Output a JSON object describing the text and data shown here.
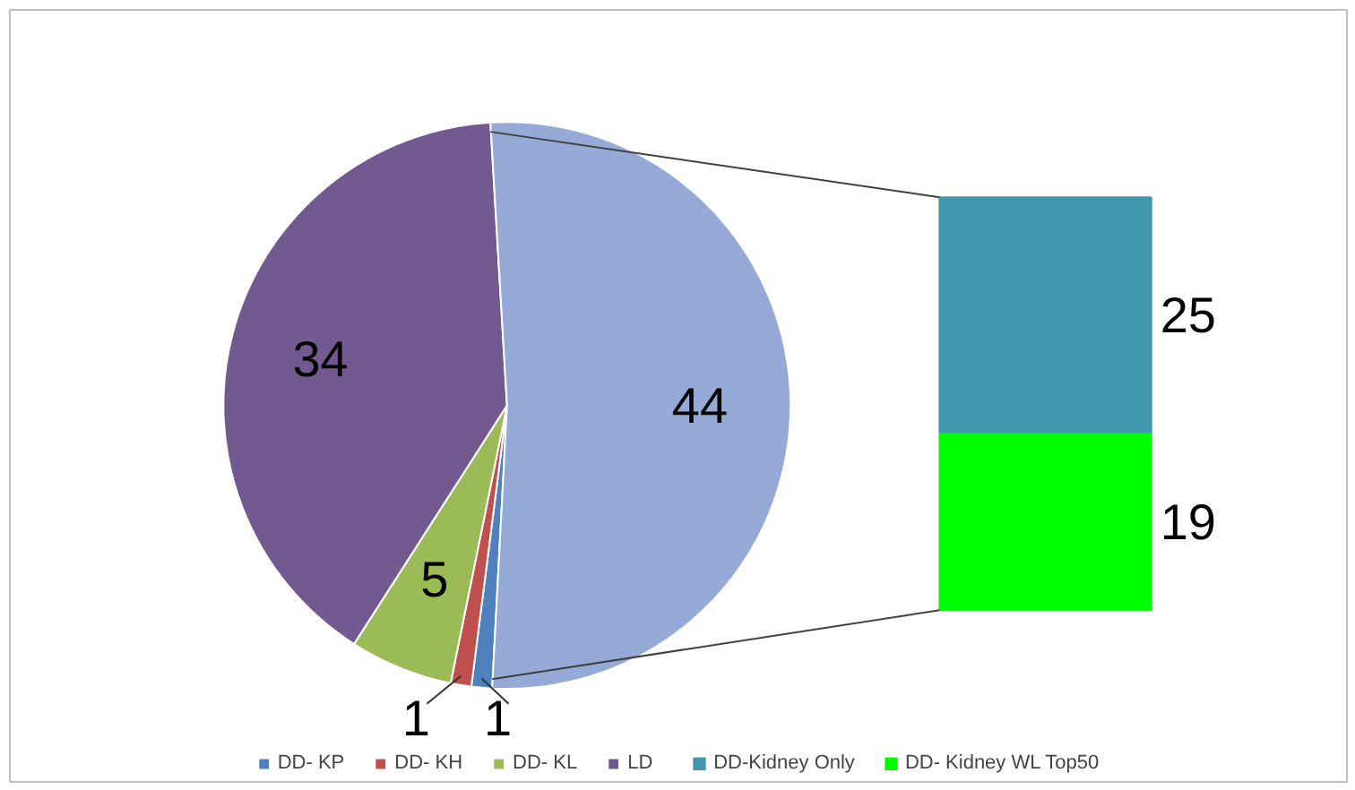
{
  "chart_data": [
    {
      "type": "pie",
      "categories": [
        "DD- KP",
        "DD- KH",
        "DD- KL",
        "LD",
        null
      ],
      "values": [
        1,
        1,
        5,
        34,
        44
      ],
      "colors": [
        "#4f81bd",
        "#c0504d",
        "#9bbb59",
        "#725990",
        "#95aad6"
      ],
      "data_labels": true,
      "legend": "bottom"
    },
    {
      "type": "bar",
      "stacked": true,
      "categories": [
        null
      ],
      "series": [
        {
          "name": "DD- Kidney WL Top50",
          "color": "#00ff00",
          "values": [
            19
          ]
        },
        {
          "name": "DD-Kidney Only",
          "color": "#4198af",
          "values": [
            25
          ]
        }
      ],
      "data_labels": true,
      "legend": "bottom"
    }
  ]
}
